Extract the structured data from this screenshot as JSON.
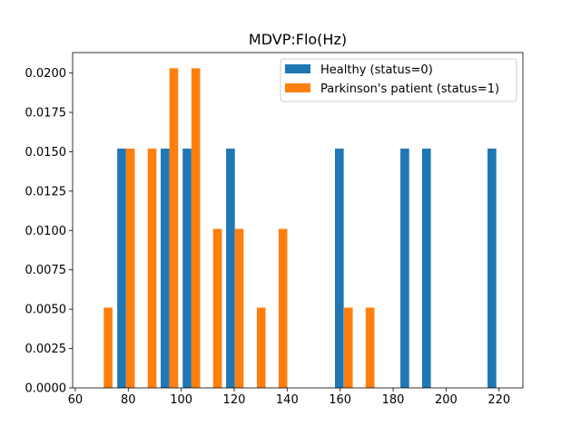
{
  "chart_data": {
    "type": "bar",
    "title": "MDVP:Flo(Hz)",
    "xlabel": "",
    "ylabel": "",
    "xlim": [
      59,
      229
    ],
    "ylim": [
      0,
      0.0213
    ],
    "x_ticks": [
      60,
      80,
      100,
      120,
      140,
      160,
      180,
      200,
      220
    ],
    "y_ticks": [
      0.0,
      0.0025,
      0.005,
      0.0075,
      0.01,
      0.0125,
      0.015,
      0.0175,
      0.02
    ],
    "x_tick_labels": [
      "60",
      "80",
      "100",
      "120",
      "140",
      "160",
      "180",
      "200",
      "220"
    ],
    "y_tick_labels": [
      "0.0000",
      "0.0025",
      "0.0050",
      "0.0075",
      "0.0100",
      "0.0125",
      "0.0150",
      "0.0175",
      "0.0200"
    ],
    "bin_width": 3.3,
    "legend_position": "upper-right",
    "grid": false,
    "series": [
      {
        "name": "Healthy (status=0)",
        "color": "#1f77b4",
        "bins": [
          {
            "x": 77.5,
            "value": 0.0152
          },
          {
            "x": 93.9,
            "value": 0.0152
          },
          {
            "x": 102.2,
            "value": 0.0152
          },
          {
            "x": 118.6,
            "value": 0.0152
          },
          {
            "x": 159.7,
            "value": 0.0152
          },
          {
            "x": 184.4,
            "value": 0.0152
          },
          {
            "x": 192.6,
            "value": 0.0152
          },
          {
            "x": 217.3,
            "value": 0.0152
          }
        ]
      },
      {
        "name": "Parkinson's patient (status=1)",
        "color": "#ff7f0e",
        "bins": [
          {
            "x": 72.4,
            "value": 0.0051
          },
          {
            "x": 80.8,
            "value": 0.0152
          },
          {
            "x": 89.0,
            "value": 0.0152
          },
          {
            "x": 97.2,
            "value": 0.0203
          },
          {
            "x": 105.5,
            "value": 0.0203
          },
          {
            "x": 113.7,
            "value": 0.0101
          },
          {
            "x": 121.9,
            "value": 0.0101
          },
          {
            "x": 130.2,
            "value": 0.0051
          },
          {
            "x": 138.4,
            "value": 0.0101
          },
          {
            "x": 163.1,
            "value": 0.0051
          },
          {
            "x": 171.3,
            "value": 0.0051
          }
        ]
      }
    ]
  }
}
